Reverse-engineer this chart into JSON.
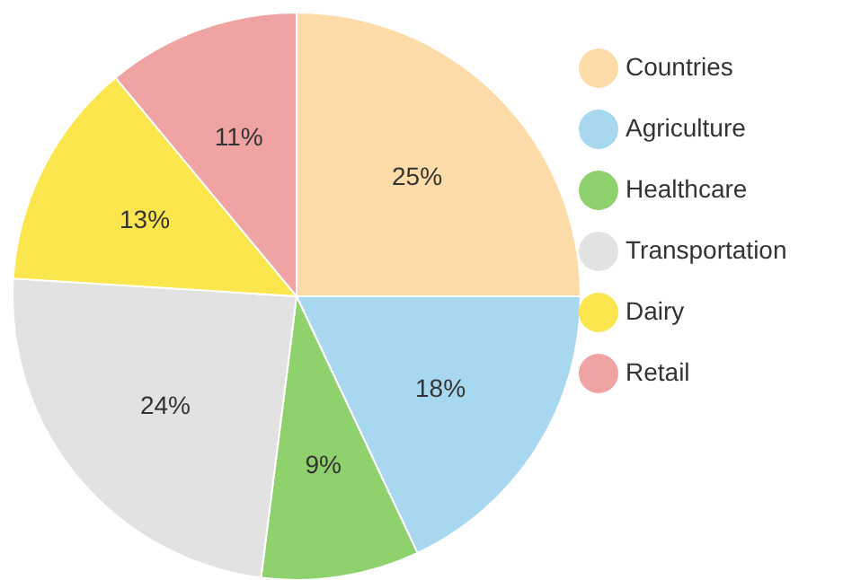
{
  "chart_data": {
    "type": "pie",
    "categories": [
      "Countries",
      "Agriculture",
      "Healthcare",
      "Transportation",
      "Dairy",
      "Retail"
    ],
    "values": [
      25,
      18,
      9,
      24,
      13,
      11
    ],
    "value_labels": [
      "25%",
      "18%",
      "9%",
      "24%",
      "13%",
      "11%"
    ],
    "colors": [
      "#fddcaa",
      "#a8d8f0",
      "#8fd16c",
      "#e2e2e2",
      "#fbe64e",
      "#f0a3a3"
    ],
    "legend": "top right"
  }
}
